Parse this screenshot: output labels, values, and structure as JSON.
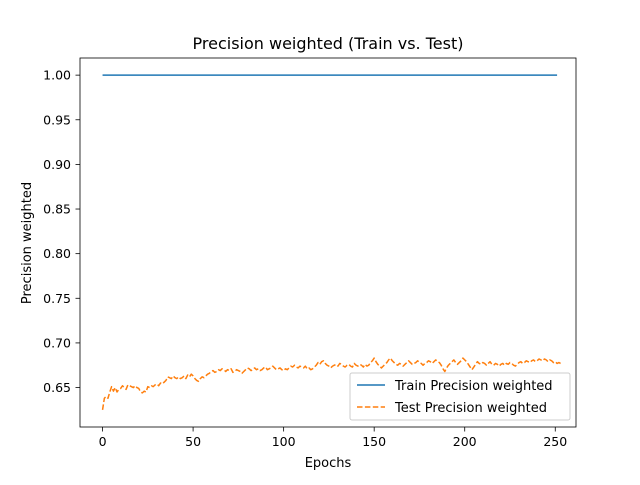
{
  "chart_data": {
    "type": "line",
    "title": "Precision weighted (Train vs. Test)",
    "xlabel": "Epochs",
    "ylabel": "Precision weighted",
    "xlim": [
      -12.45,
      261.45
    ],
    "ylim": [
      0.6058,
      1.0192
    ],
    "xticks": [
      0,
      50,
      100,
      150,
      200,
      250
    ],
    "xtick_labels": [
      "0",
      "50",
      "100",
      "150",
      "200",
      "250"
    ],
    "yticks": [
      0.65,
      0.7,
      0.75,
      0.8,
      0.85,
      0.9,
      0.95,
      1.0
    ],
    "ytick_labels": [
      "0.65",
      "0.70",
      "0.75",
      "0.80",
      "0.85",
      "0.90",
      "0.95",
      "1.00"
    ],
    "grid": false,
    "legend_position": "lower-right",
    "series": [
      {
        "name": "Train Precision weighted",
        "color": "#1f77b4",
        "style": "solid",
        "x_start": 0,
        "x_step": 1,
        "values": [
          1.0,
          1.0,
          1.0,
          1.0,
          1.0,
          1.0,
          1.0,
          1.0,
          1.0,
          1.0,
          1.0,
          1.0,
          1.0,
          1.0,
          1.0,
          1.0,
          1.0,
          1.0,
          1.0,
          1.0,
          1.0,
          1.0,
          1.0,
          1.0,
          1.0,
          1.0,
          1.0,
          1.0,
          1.0,
          1.0,
          1.0,
          1.0,
          1.0,
          1.0,
          1.0,
          1.0,
          1.0,
          1.0,
          1.0,
          1.0,
          1.0,
          1.0,
          1.0,
          1.0,
          1.0,
          1.0,
          1.0,
          1.0,
          1.0,
          1.0,
          1.0,
          1.0,
          1.0,
          1.0,
          1.0,
          1.0,
          1.0,
          1.0,
          1.0,
          1.0,
          1.0,
          1.0,
          1.0,
          1.0,
          1.0,
          1.0,
          1.0,
          1.0,
          1.0,
          1.0,
          1.0,
          1.0,
          1.0,
          1.0,
          1.0,
          1.0,
          1.0,
          1.0,
          1.0,
          1.0,
          1.0,
          1.0,
          1.0,
          1.0,
          1.0,
          1.0,
          1.0,
          1.0,
          1.0,
          1.0,
          1.0,
          1.0,
          1.0,
          1.0,
          1.0,
          1.0,
          1.0,
          1.0,
          1.0,
          1.0,
          1.0,
          1.0,
          1.0,
          1.0,
          1.0,
          1.0,
          1.0,
          1.0,
          1.0,
          1.0,
          1.0,
          1.0,
          1.0,
          1.0,
          1.0,
          1.0,
          1.0,
          1.0,
          1.0,
          1.0,
          1.0,
          1.0,
          1.0,
          1.0,
          1.0,
          1.0,
          1.0,
          1.0,
          1.0,
          1.0,
          1.0,
          1.0,
          1.0,
          1.0,
          1.0,
          1.0,
          1.0,
          1.0,
          1.0,
          1.0,
          1.0,
          1.0,
          1.0,
          1.0,
          1.0,
          1.0,
          1.0,
          1.0,
          1.0,
          1.0,
          1.0,
          1.0,
          1.0,
          1.0,
          1.0,
          1.0,
          1.0,
          1.0,
          1.0,
          1.0,
          1.0,
          1.0,
          1.0,
          1.0,
          1.0,
          1.0,
          1.0,
          1.0,
          1.0,
          1.0,
          1.0,
          1.0,
          1.0,
          1.0,
          1.0,
          1.0,
          1.0,
          1.0,
          1.0,
          1.0,
          1.0,
          1.0,
          1.0,
          1.0,
          1.0,
          1.0,
          1.0,
          1.0,
          1.0,
          1.0,
          1.0,
          1.0,
          1.0,
          1.0,
          1.0,
          1.0,
          1.0,
          1.0,
          1.0,
          1.0,
          1.0,
          1.0,
          1.0,
          1.0,
          1.0,
          1.0,
          1.0,
          1.0,
          1.0,
          1.0,
          1.0,
          1.0,
          1.0,
          1.0,
          1.0,
          1.0,
          1.0,
          1.0,
          1.0,
          1.0,
          1.0,
          1.0,
          1.0,
          1.0,
          1.0,
          1.0,
          1.0,
          1.0,
          1.0,
          1.0,
          1.0,
          1.0,
          1.0,
          1.0,
          1.0,
          1.0,
          1.0,
          1.0,
          1.0,
          1.0,
          1.0,
          1.0,
          1.0,
          1.0,
          1.0,
          1.0,
          1.0,
          1.0,
          1.0,
          1.0,
          1.0,
          1.0
        ]
      },
      {
        "name": "Test Precision weighted",
        "color": "#ff7f0e",
        "style": "dashed",
        "x_start": 0,
        "x_step": 1,
        "values": [
          0.625,
          0.638,
          0.64,
          0.638,
          0.645,
          0.651,
          0.646,
          0.65,
          0.645,
          0.648,
          0.649,
          0.652,
          0.65,
          0.648,
          0.653,
          0.652,
          0.651,
          0.65,
          0.652,
          0.65,
          0.649,
          0.645,
          0.644,
          0.646,
          0.645,
          0.651,
          0.65,
          0.652,
          0.651,
          0.653,
          0.654,
          0.652,
          0.655,
          0.654,
          0.656,
          0.658,
          0.662,
          0.661,
          0.66,
          0.663,
          0.661,
          0.66,
          0.662,
          0.66,
          0.661,
          0.663,
          0.66,
          0.664,
          0.662,
          0.665,
          0.663,
          0.66,
          0.658,
          0.657,
          0.66,
          0.662,
          0.661,
          0.663,
          0.665,
          0.666,
          0.668,
          0.669,
          0.667,
          0.668,
          0.67,
          0.669,
          0.671,
          0.67,
          0.668,
          0.67,
          0.669,
          0.671,
          0.667,
          0.668,
          0.67,
          0.669,
          0.668,
          0.666,
          0.668,
          0.67,
          0.672,
          0.671,
          0.669,
          0.67,
          0.672,
          0.67,
          0.671,
          0.669,
          0.67,
          0.672,
          0.673,
          0.67,
          0.671,
          0.672,
          0.674,
          0.672,
          0.67,
          0.671,
          0.672,
          0.67,
          0.669,
          0.671,
          0.67,
          0.672,
          0.674,
          0.673,
          0.675,
          0.673,
          0.672,
          0.674,
          0.673,
          0.672,
          0.674,
          0.671,
          0.672,
          0.67,
          0.671,
          0.673,
          0.675,
          0.678,
          0.676,
          0.679,
          0.68,
          0.677,
          0.675,
          0.674,
          0.672,
          0.674,
          0.675,
          0.676,
          0.674,
          0.677,
          0.676,
          0.674,
          0.673,
          0.675,
          0.676,
          0.674,
          0.673,
          0.677,
          0.675,
          0.674,
          0.676,
          0.675,
          0.673,
          0.676,
          0.674,
          0.675,
          0.678,
          0.68,
          0.683,
          0.679,
          0.676,
          0.674,
          0.672,
          0.674,
          0.676,
          0.678,
          0.681,
          0.683,
          0.68,
          0.678,
          0.676,
          0.675,
          0.677,
          0.676,
          0.674,
          0.676,
          0.678,
          0.68,
          0.678,
          0.676,
          0.677,
          0.678,
          0.68,
          0.678,
          0.677,
          0.675,
          0.677,
          0.678,
          0.68,
          0.679,
          0.677,
          0.679,
          0.681,
          0.679,
          0.678,
          0.675,
          0.671,
          0.668,
          0.672,
          0.675,
          0.677,
          0.679,
          0.681,
          0.678,
          0.676,
          0.678,
          0.68,
          0.683,
          0.681,
          0.679,
          0.676,
          0.673,
          0.67,
          0.673,
          0.676,
          0.679,
          0.677,
          0.676,
          0.678,
          0.677,
          0.675,
          0.677,
          0.679,
          0.676,
          0.675,
          0.677,
          0.676,
          0.674,
          0.676,
          0.677,
          0.675,
          0.677,
          0.676,
          0.678,
          0.677,
          0.675,
          0.674,
          0.676,
          0.678,
          0.679,
          0.677,
          0.678,
          0.68,
          0.679,
          0.678,
          0.68,
          0.681,
          0.679,
          0.68,
          0.682,
          0.681,
          0.68,
          0.682,
          0.681,
          0.679,
          0.681,
          0.68,
          0.678,
          0.679,
          0.677,
          0.678,
          0.677,
          0.678
        ]
      }
    ]
  }
}
